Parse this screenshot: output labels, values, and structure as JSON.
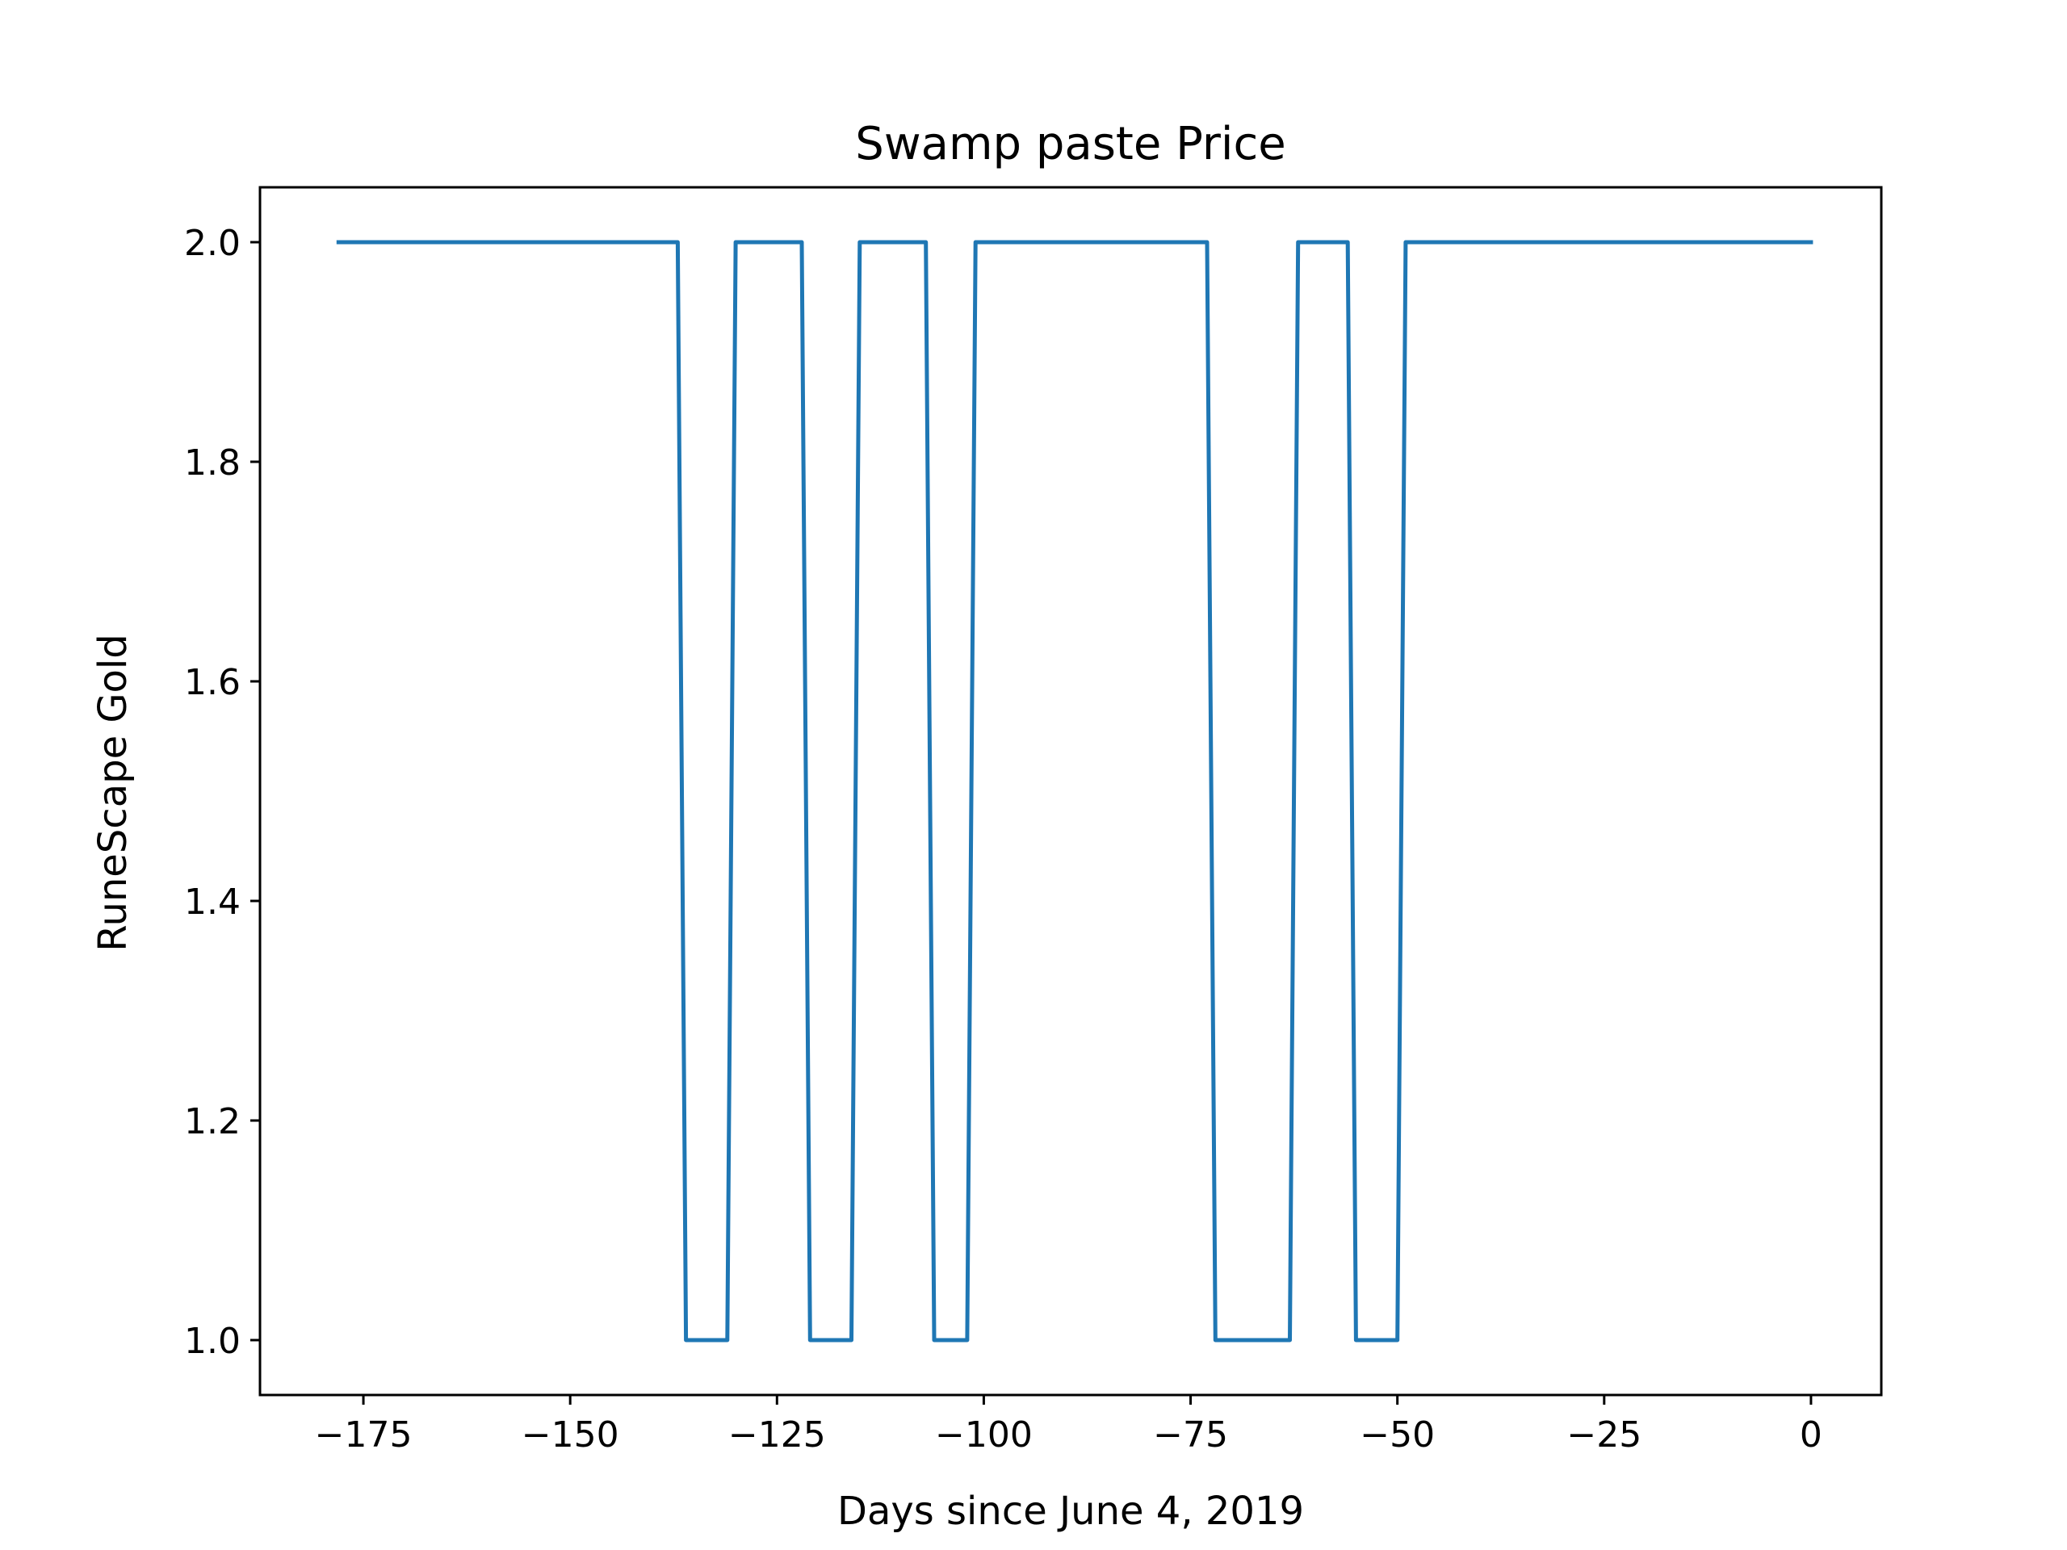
{
  "chart_data": {
    "type": "line",
    "title": "Swamp paste Price",
    "xlabel": "Days since June 4, 2019",
    "ylabel": "RuneScape Gold",
    "xlim": [
      -187.5,
      8.5
    ],
    "ylim": [
      0.95,
      2.05
    ],
    "grid": false,
    "legend": "none",
    "line_color": "#1f77b4",
    "x_ticks": [
      -175,
      -150,
      -125,
      -100,
      -75,
      -50,
      -25,
      0
    ],
    "x_tick_labels": [
      "−175",
      "−150",
      "−125",
      "−100",
      "−75",
      "−50",
      "−25",
      "0"
    ],
    "y_ticks": [
      1.0,
      1.2,
      1.4,
      1.6,
      1.8,
      2.0
    ],
    "y_tick_labels": [
      "1.0",
      "1.2",
      "1.4",
      "1.6",
      "1.8",
      "2.0"
    ],
    "series": [
      {
        "x": [
          -178,
          -137,
          -136,
          -131,
          -130,
          -122,
          -121,
          -116,
          -115,
          -107,
          -106,
          -102,
          -101,
          -73,
          -72,
          -63,
          -62,
          -56,
          -55,
          -50,
          -49,
          0
        ],
        "values": [
          2,
          2,
          1,
          1,
          2,
          2,
          1,
          1,
          2,
          2,
          1,
          1,
          2,
          2,
          1,
          1,
          2,
          2,
          1,
          1,
          2,
          2
        ]
      }
    ]
  }
}
